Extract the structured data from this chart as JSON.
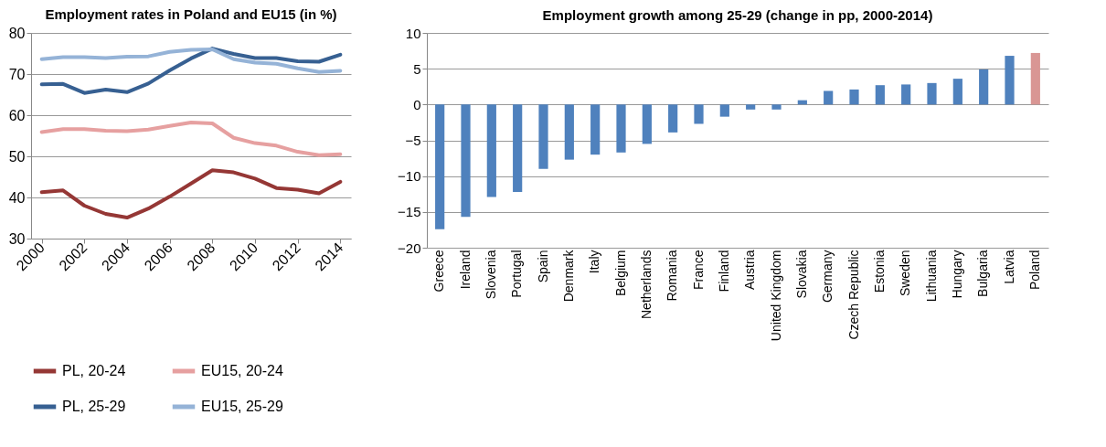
{
  "chart_data": [
    {
      "type": "line",
      "title": "Employment rates in Poland and EU15 (in %)",
      "x": [
        2000,
        2001,
        2002,
        2003,
        2004,
        2005,
        2006,
        2007,
        2008,
        2009,
        2010,
        2011,
        2012,
        2013,
        2014
      ],
      "series": [
        {
          "name": "PL, 20-24",
          "color": "#953735",
          "values": [
            41.3,
            41.7,
            38,
            36,
            35.1,
            37.3,
            40.2,
            43.4,
            46.6,
            46.1,
            44.6,
            42.3,
            41.9,
            41.0,
            43.8
          ]
        },
        {
          "name": "EU15, 20-24",
          "color": "#e6a0a0",
          "values": [
            55.9,
            56.6,
            56.6,
            56.2,
            56.1,
            56.5,
            57.4,
            58.2,
            58.0,
            54.5,
            53.2,
            52.6,
            51.1,
            50.3,
            50.5
          ]
        },
        {
          "name": "PL, 25-29",
          "color": "#376092",
          "values": [
            67.5,
            67.6,
            65.4,
            66.2,
            65.6,
            67.7,
            70.9,
            73.8,
            76.2,
            74.9,
            73.9,
            73.9,
            73.1,
            73.0,
            74.7
          ]
        },
        {
          "name": "EU15, 25-29",
          "color": "#95b3d7",
          "values": [
            73.6,
            74.1,
            74.1,
            73.9,
            74.2,
            74.3,
            75.4,
            75.9,
            76.0,
            73.6,
            72.8,
            72.5,
            71.4,
            70.5,
            70.8
          ]
        }
      ],
      "xlim": [
        1999.5,
        2014.5
      ],
      "xticks": [
        2000,
        2002,
        2004,
        2006,
        2008,
        2010,
        2012,
        2014
      ],
      "ylim": [
        30,
        80
      ],
      "yticks": [
        30,
        40,
        50,
        60,
        70,
        80
      ],
      "grid": "y",
      "legend": "bottom"
    },
    {
      "type": "bar",
      "title": "Employment growth among 25-29 (change in pp, 2000-2014)",
      "categories": [
        "Greece",
        "Ireland",
        "Slovenia",
        "Portugal",
        "Spain",
        "Denmark",
        "Italy",
        "Belgium",
        "Netherlands",
        "Romania",
        "France",
        "Finland",
        "Austria",
        "United Kingdom",
        "Slovakia",
        "Germany",
        "Czech Republic",
        "Estonia",
        "Sweden",
        "Lithuania",
        "Hungary",
        "Bulgaria",
        "Latvia",
        "Poland"
      ],
      "values": [
        -17.4,
        -15.7,
        -12.9,
        -12.2,
        -9.0,
        -7.7,
        -7.0,
        -6.7,
        -5.5,
        -3.9,
        -2.7,
        -1.7,
        -0.7,
        -0.7,
        0.6,
        1.9,
        2.1,
        2.7,
        2.8,
        3.0,
        3.6,
        4.9,
        6.8,
        7.2
      ],
      "colors": [
        "#4f81bd",
        "#4f81bd",
        "#4f81bd",
        "#4f81bd",
        "#4f81bd",
        "#4f81bd",
        "#4f81bd",
        "#4f81bd",
        "#4f81bd",
        "#4f81bd",
        "#4f81bd",
        "#4f81bd",
        "#4f81bd",
        "#4f81bd",
        "#4f81bd",
        "#4f81bd",
        "#4f81bd",
        "#4f81bd",
        "#4f81bd",
        "#4f81bd",
        "#4f81bd",
        "#4f81bd",
        "#4f81bd",
        "#d99694"
      ],
      "ylim": [
        -20,
        10
      ],
      "yticks": [
        -20,
        -15,
        -10,
        -5,
        0,
        5,
        10
      ],
      "grid": "y"
    }
  ]
}
